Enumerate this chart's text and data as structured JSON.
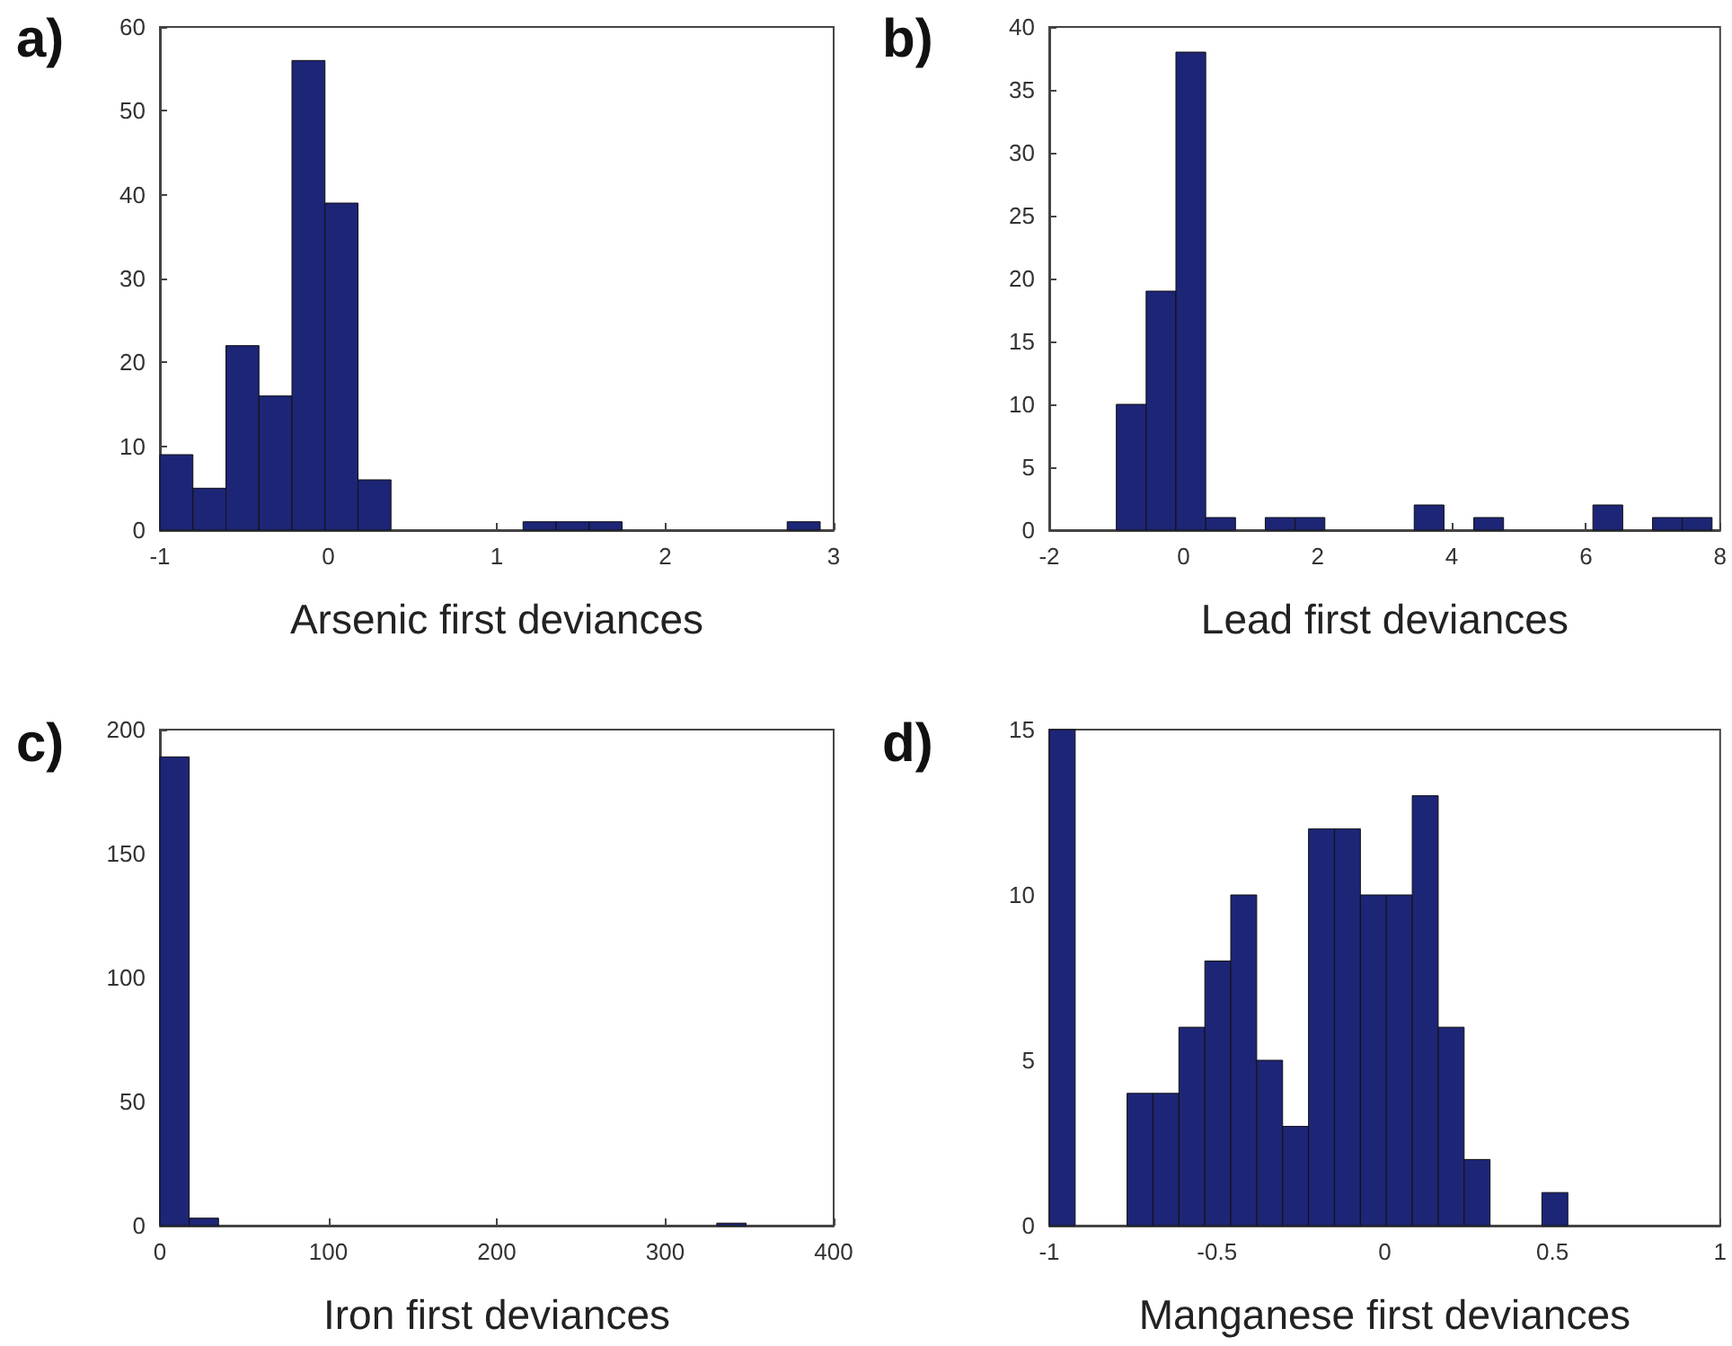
{
  "chart_data": [
    {
      "type": "histogram",
      "title": "a)",
      "xlabel": "Arsenic first deviances",
      "color": "#1d2576",
      "bins": [
        -1,
        -0.804,
        -0.608,
        -0.412,
        -0.216,
        -0.02,
        0.176,
        0.372,
        0.568,
        0.764,
        0.96,
        1.156,
        1.352,
        1.548,
        1.744,
        1.94,
        2.136,
        2.332,
        2.528,
        2.724,
        2.92
      ],
      "values": [
        9,
        5,
        22,
        16,
        56,
        39,
        6,
        0,
        0,
        0,
        0,
        1,
        1,
        1,
        0,
        0,
        0,
        0,
        0,
        1
      ],
      "xlim": [
        -1,
        3
      ],
      "xticks": [
        -1,
        0,
        1,
        2,
        3
      ],
      "ylim": [
        0,
        60
      ],
      "yticks": [
        0,
        10,
        20,
        30,
        40,
        50,
        60
      ],
      "grid": false
    },
    {
      "type": "histogram",
      "title": "b)",
      "xlabel": "Lead first deviances",
      "color": "#1d2576",
      "bins": [
        -1,
        -0.556,
        -0.112,
        0.332,
        0.776,
        1.22,
        1.664,
        2.108,
        2.552,
        2.996,
        3.44,
        3.884,
        4.328,
        4.772,
        5.216,
        5.66,
        6.104,
        6.548,
        6.992,
        7.436,
        7.88
      ],
      "values": [
        10,
        19,
        38,
        1,
        0,
        1,
        1,
        0,
        0,
        0,
        2,
        0,
        1,
        0,
        0,
        0,
        2,
        0,
        1,
        1
      ],
      "xlim": [
        -2,
        8
      ],
      "xticks": [
        -2,
        0,
        2,
        4,
        6,
        8
      ],
      "ylim": [
        0,
        40
      ],
      "yticks": [
        0,
        5,
        10,
        15,
        20,
        25,
        30,
        35,
        40
      ],
      "grid": false
    },
    {
      "type": "histogram",
      "title": "c)",
      "xlabel": "Iron first deviances",
      "color": "#1d2576",
      "bins": [
        0,
        17.4,
        34.8,
        52.2,
        69.6,
        87,
        104.4,
        121.8,
        139.2,
        156.6,
        174,
        191.4,
        208.8,
        226.2,
        243.6,
        261,
        278.4,
        295.8,
        313.2,
        330.6,
        348
      ],
      "values": [
        189,
        3,
        0,
        0,
        0,
        0,
        0,
        0,
        0,
        0,
        0,
        0,
        0,
        0,
        0,
        0,
        0,
        0,
        0,
        1
      ],
      "xlim": [
        0,
        400
      ],
      "xticks": [
        0,
        100,
        200,
        300,
        400
      ],
      "ylim": [
        0,
        200
      ],
      "yticks": [
        0,
        50,
        100,
        150,
        200
      ],
      "grid": false
    },
    {
      "type": "histogram",
      "title": "d)",
      "xlabel": "Manganese first deviances",
      "color": "#1d2576",
      "bins": [
        -1,
        -0.9227,
        -0.8454,
        -0.7681,
        -0.6908,
        -0.6135,
        -0.5362,
        -0.4589,
        -0.3816,
        -0.3043,
        -0.227,
        -0.1497,
        -0.0724,
        0.0049,
        0.0822,
        0.1595,
        0.2368,
        0.3141,
        0.3914,
        0.4687,
        0.546
      ],
      "values": [
        15,
        0,
        0,
        4,
        4,
        6,
        8,
        10,
        5,
        3,
        12,
        12,
        10,
        10,
        13,
        6,
        2,
        0,
        0,
        1
      ],
      "xlim": [
        -1,
        1
      ],
      "xticks": [
        -1,
        -0.5,
        0,
        0.5,
        1
      ],
      "ylim": [
        0,
        15
      ],
      "yticks": [
        0,
        5,
        10,
        15
      ],
      "grid": false
    }
  ]
}
